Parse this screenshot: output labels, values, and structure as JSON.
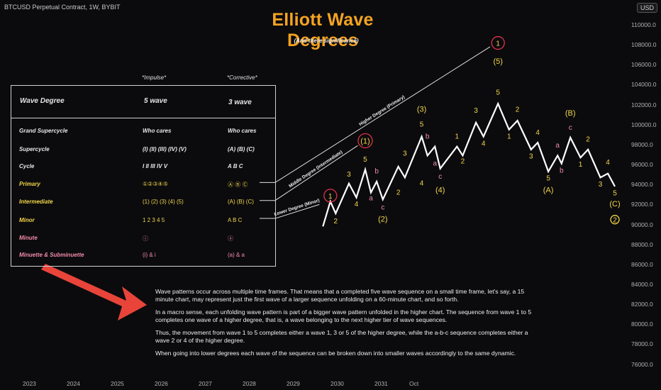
{
  "header": {
    "symbol": "BTCUSD Perpetual Contract, 1W, BYBIT",
    "currency_button": "USD"
  },
  "chart_data": {
    "type": "line",
    "title": "Elliott Wave Degrees",
    "subtitle": "(And there significance)",
    "y_axis": {
      "ticks": [
        "110000.0",
        "108000.0",
        "106000.0",
        "104000.0",
        "102000.0",
        "100000.0",
        "98000.0",
        "96000.0",
        "94000.0",
        "92000.0",
        "90000.0",
        "88000.0",
        "86000.0",
        "84000.0",
        "82000.0",
        "80000.0",
        "78000.0",
        "76000.0"
      ],
      "ylim": [
        75000,
        112000
      ]
    },
    "x_axis": {
      "ticks": [
        "2023",
        "2024",
        "2025",
        "2026",
        "2027",
        "2028",
        "2029",
        "2030",
        "2031",
        "Oct"
      ]
    },
    "wave_path": [
      {
        "x": 2029.66,
        "y": 89800
      },
      {
        "x": 2029.83,
        "y": 92300
      },
      {
        "x": 2029.95,
        "y": 91100
      },
      {
        "x": 2030.25,
        "y": 94100
      },
      {
        "x": 2030.42,
        "y": 92700
      },
      {
        "x": 2030.62,
        "y": 95500
      },
      {
        "x": 2030.75,
        "y": 93200
      },
      {
        "x": 2030.88,
        "y": 94300
      },
      {
        "x": 2031.02,
        "y": 92500
      },
      {
        "x": 2031.37,
        "y": 95800
      },
      {
        "x": 2031.52,
        "y": 94700
      },
      {
        "x": 2031.9,
        "y": 98800
      },
      {
        "x": 2032.03,
        "y": 96900
      },
      {
        "x": 2032.2,
        "y": 97800
      },
      {
        "x": 2032.32,
        "y": 95600
      },
      {
        "x": 2032.7,
        "y": 97800
      },
      {
        "x": 2032.83,
        "y": 96900
      },
      {
        "x": 2033.13,
        "y": 100200
      },
      {
        "x": 2033.3,
        "y": 98800
      },
      {
        "x": 2033.63,
        "y": 102100
      },
      {
        "x": 2033.88,
        "y": 99500
      },
      {
        "x": 2034.07,
        "y": 100400
      },
      {
        "x": 2034.38,
        "y": 97500
      },
      {
        "x": 2034.53,
        "y": 98200
      },
      {
        "x": 2034.77,
        "y": 95300
      },
      {
        "x": 2034.98,
        "y": 96900
      },
      {
        "x": 2035.07,
        "y": 96100
      },
      {
        "x": 2035.27,
        "y": 98700
      },
      {
        "x": 2035.5,
        "y": 96700
      },
      {
        "x": 2035.67,
        "y": 97500
      },
      {
        "x": 2035.95,
        "y": 94700
      },
      {
        "x": 2036.12,
        "y": 95100
      },
      {
        "x": 2036.28,
        "y": 93800
      }
    ],
    "wave_labels": [
      {
        "text": "2",
        "x": 2029.95,
        "y": 90100,
        "color": "#f2d54a"
      },
      {
        "text": "3",
        "x": 2030.25,
        "y": 94800,
        "color": "#f2d54a"
      },
      {
        "text": "4",
        "x": 2030.42,
        "y": 91800,
        "color": "#f2d54a"
      },
      {
        "text": "5",
        "x": 2030.62,
        "y": 96300,
        "color": "#f2d54a"
      },
      {
        "text": "a",
        "x": 2030.75,
        "y": 92400,
        "color": "#f28aa8"
      },
      {
        "text": "b",
        "x": 2030.88,
        "y": 95100,
        "color": "#f28aa8"
      },
      {
        "text": "c",
        "x": 2031.02,
        "y": 91500,
        "color": "#f28aa8"
      },
      {
        "text": "(2)",
        "x": 2031.02,
        "y": 90300,
        "color": "#f2d54a"
      },
      {
        "text": "2",
        "x": 2031.37,
        "y": 93000,
        "color": "#f2d54a"
      },
      {
        "text": "3",
        "x": 2031.52,
        "y": 96900,
        "color": "#f2d54a"
      },
      {
        "text": "4",
        "x": 2031.9,
        "y": 93900,
        "color": "#f2d54a"
      },
      {
        "text": "5",
        "x": 2031.9,
        "y": 99800,
        "color": "#f2d54a"
      },
      {
        "text": "(3)",
        "x": 2031.9,
        "y": 101300,
        "color": "#f2d54a"
      },
      {
        "text": "b",
        "x": 2032.03,
        "y": 98600,
        "color": "#f28aa8"
      },
      {
        "text": "a",
        "x": 2032.2,
        "y": 95900,
        "color": "#f28aa8"
      },
      {
        "text": "c",
        "x": 2032.32,
        "y": 94600,
        "color": "#f28aa8"
      },
      {
        "text": "(4)",
        "x": 2032.32,
        "y": 93200,
        "color": "#f2d54a"
      },
      {
        "text": "1",
        "x": 2032.7,
        "y": 98600,
        "color": "#f2d54a"
      },
      {
        "text": "2",
        "x": 2032.83,
        "y": 96100,
        "color": "#f2d54a"
      },
      {
        "text": "3",
        "x": 2033.13,
        "y": 101200,
        "color": "#f2d54a"
      },
      {
        "text": "4",
        "x": 2033.3,
        "y": 97900,
        "color": "#f2d54a"
      },
      {
        "text": "5",
        "x": 2033.63,
        "y": 103000,
        "color": "#f2d54a"
      },
      {
        "text": "1",
        "x": 2033.88,
        "y": 98600,
        "color": "#f2d54a"
      },
      {
        "text": "2",
        "x": 2034.07,
        "y": 101300,
        "color": "#f2d54a"
      },
      {
        "text": "4",
        "x": 2034.53,
        "y": 99000,
        "color": "#f2d54a"
      },
      {
        "text": "3",
        "x": 2034.38,
        "y": 96600,
        "color": "#f2d54a"
      },
      {
        "text": "5",
        "x": 2034.77,
        "y": 94400,
        "color": "#f2d54a"
      },
      {
        "text": "(A)",
        "x": 2034.77,
        "y": 93200,
        "color": "#f2d54a"
      },
      {
        "text": "a",
        "x": 2034.98,
        "y": 97700,
        "color": "#f28aa8"
      },
      {
        "text": "b",
        "x": 2035.07,
        "y": 95200,
        "color": "#f28aa8"
      },
      {
        "text": "c",
        "x": 2035.27,
        "y": 99500,
        "color": "#f28aa8"
      },
      {
        "text": "(B)",
        "x": 2035.27,
        "y": 100900,
        "color": "#f2d54a"
      },
      {
        "text": "1",
        "x": 2035.5,
        "y": 95800,
        "color": "#f2d54a"
      },
      {
        "text": "2",
        "x": 2035.67,
        "y": 98300,
        "color": "#f2d54a"
      },
      {
        "text": "3",
        "x": 2035.95,
        "y": 93800,
        "color": "#f2d54a"
      },
      {
        "text": "4",
        "x": 2036.12,
        "y": 96000,
        "color": "#f2d54a"
      },
      {
        "text": "5",
        "x": 2036.28,
        "y": 92900,
        "color": "#f2d54a"
      },
      {
        "text": "(C)",
        "x": 2036.28,
        "y": 91800,
        "color": "#f2d54a"
      }
    ],
    "circle_labels": [
      {
        "text": "1",
        "x": 2029.83,
        "y": 92600,
        "ring": "#e0334a",
        "color": "#f2d54a"
      },
      {
        "text": "(1)",
        "x": 2030.62,
        "y": 98100,
        "ring": "#e0334a",
        "color": "#f2d54a"
      },
      {
        "text": "1",
        "x": 2033.63,
        "y": 107900,
        "ring": "#e0334a",
        "color": "#f2d54a"
      },
      {
        "text": "(5)",
        "x": 2033.63,
        "y": 106100,
        "ring": "",
        "color": "#f2d54a"
      },
      {
        "text": "2",
        "x": 2036.28,
        "y": 90200,
        "ring": "#f2d54a",
        "color": "#f2d54a"
      }
    ],
    "degree_lines": [
      {
        "label": "Lower Degree (Minor)",
        "from": {
          "x": 2027.95,
          "y": 90600
        },
        "to": {
          "x": 2029.58,
          "y": 92000
        }
      },
      {
        "label": "Middle Degree (Intermediate)",
        "from": {
          "x": 2027.95,
          "y": 92400
        },
        "to": {
          "x": 2030.45,
          "y": 97900
        }
      },
      {
        "label": "Higher Degree (Primary)",
        "from": {
          "x": 2027.95,
          "y": 94200
        },
        "to": {
          "x": 2033.45,
          "y": 107800
        }
      }
    ]
  },
  "table": {
    "head_impulse": "*Impulse*",
    "head_corrective": "*Corrective*",
    "header": {
      "degree": "Wave Degree",
      "impulse": "5 wave",
      "corrective": "3 wave"
    },
    "rows": [
      {
        "name": "Grand Supercycle",
        "impulse": "Who cares",
        "corrective": "Who cares",
        "color": "white"
      },
      {
        "name": "Supercycle",
        "impulse": "(I) (II) (III) (IV) (V)",
        "corrective": "(A) (B) (C)",
        "color": "white"
      },
      {
        "name": "Cycle",
        "impulse": "I   II   III   IV   V",
        "corrective": "A   B   C",
        "color": "white"
      },
      {
        "name": "Primary",
        "impulse": "①②③④⑤",
        "corrective": "Ⓐ Ⓑ Ⓒ",
        "color": "yellow"
      },
      {
        "name": "Intermediate",
        "impulse": "(1)  (2)  (3)  (4)  (5)",
        "corrective": "(A)  (B)  (C)",
        "color": "yellow"
      },
      {
        "name": "Minor",
        "impulse": "1    2    3    4    5",
        "corrective": "A    B    C",
        "color": "yellow"
      },
      {
        "name": "Minute",
        "impulse": "ⓘ",
        "corrective": "ⓐ",
        "color": "pink"
      },
      {
        "name": "Minuette & Subminuette",
        "impulse": "(i)   &   i",
        "corrective": "(a)   &   a",
        "color": "pink"
      }
    ]
  },
  "explanation": {
    "p1": "Wave patterns occur across multiple time frames. That means that a completed five wave sequence on a small time frame, let's say, a 15 minute chart, may represent just the first wave of a larger sequence unfolding on a 60-minute chart, and so forth.",
    "p2": "In a macro sense, each unfolding wave pattern is part of a bigger wave pattern unfolded in the higher chart. The sequence from wave 1 to 5 completes one wave of a higher degree, that is, a wave belonging to the next higher tier of wave sequences.",
    "p3": "Thus, the movement from wave 1 to 5 completes either a wave 1, 3 or 5 of the higher degree, while the a-b-c sequence completes either a wave 2 or 4 of the higher degree.",
    "p4": "When going into lower degrees each wave of the sequence can be broken down into smaller waves accordingly to the same dynamic."
  },
  "colors": {
    "accent": "#f4a321",
    "yellow": "#f2d54a",
    "pink": "#f28aa8",
    "red_ring": "#e0334a",
    "arrow": "#e8443a"
  }
}
